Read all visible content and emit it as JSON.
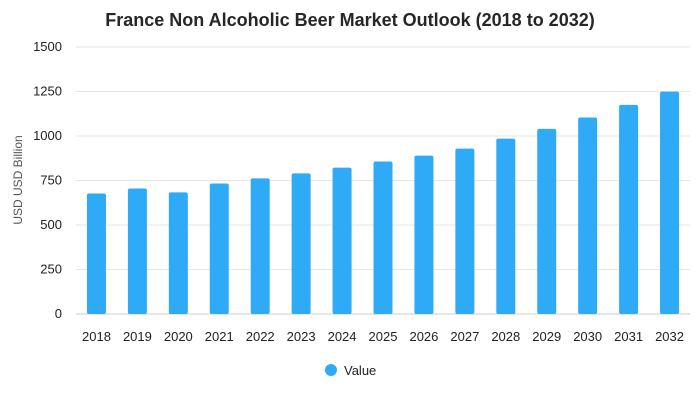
{
  "chart_data": {
    "type": "bar",
    "title": "France Non Alcoholic Beer Market Outlook (2018 to 2032)",
    "xlabel": "",
    "ylabel": "USD USD Billion",
    "ylim": [
      0,
      1500
    ],
    "yticks": [
      0,
      250,
      500,
      750,
      1000,
      1250,
      1500
    ],
    "grid": true,
    "legend_position": "bottom",
    "bar_color": "#2eaaf7",
    "categories": [
      "2018",
      "2019",
      "2020",
      "2021",
      "2022",
      "2023",
      "2024",
      "2025",
      "2026",
      "2027",
      "2028",
      "2029",
      "2030",
      "2031",
      "2032"
    ],
    "series": [
      {
        "name": "Value",
        "values": [
          677,
          705,
          683,
          733,
          762,
          790,
          822,
          857,
          890,
          929,
          985,
          1040,
          1104,
          1175,
          1249
        ]
      }
    ]
  }
}
